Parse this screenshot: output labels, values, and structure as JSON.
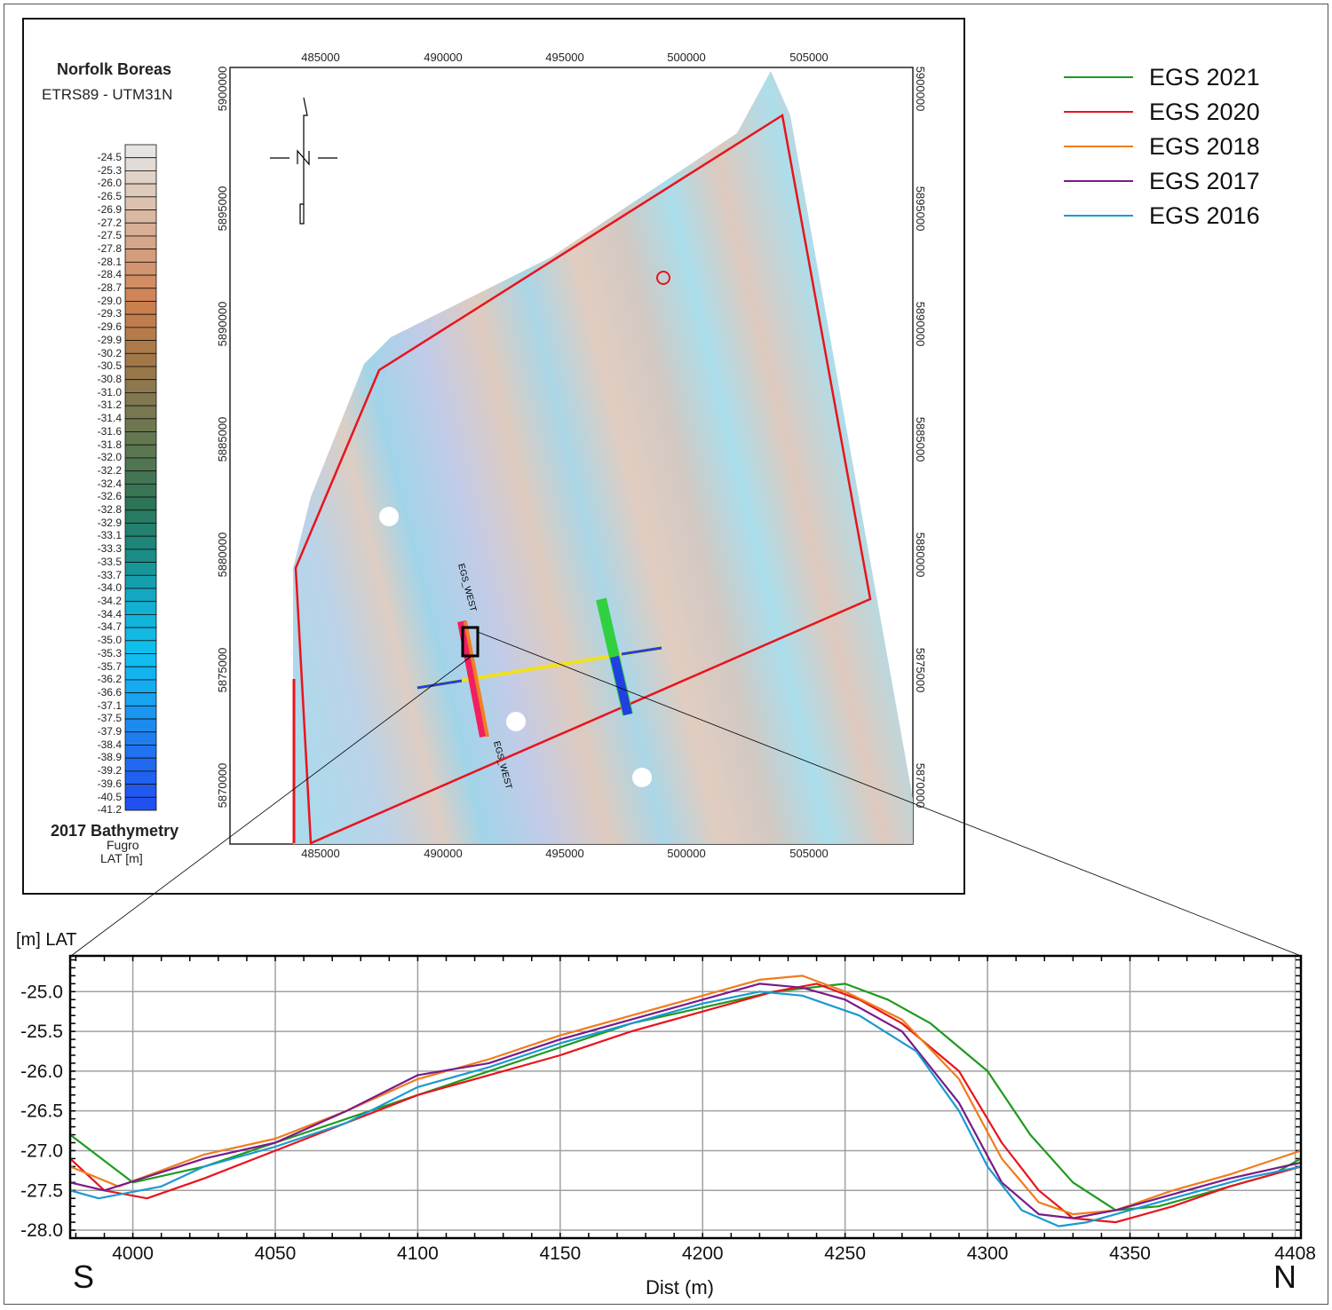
{
  "map": {
    "title": "Norfolk Boreas",
    "crs": "ETRS89 - UTM31N",
    "colorbar_title": "2017 Bathymetry",
    "colorbar_source": "Fugro",
    "colorbar_unit": "LAT [m]",
    "colorbar_labels": [
      "-24.5",
      "-25.3",
      "-26.0",
      "-26.5",
      "-26.9",
      "-27.2",
      "-27.5",
      "-27.8",
      "-28.1",
      "-28.4",
      "-28.7",
      "-29.0",
      "-29.3",
      "-29.6",
      "-29.9",
      "-30.2",
      "-30.5",
      "-30.8",
      "-31.0",
      "-31.2",
      "-31.4",
      "-31.6",
      "-31.8",
      "-32.0",
      "-32.2",
      "-32.4",
      "-32.6",
      "-32.8",
      "-32.9",
      "-33.1",
      "-33.3",
      "-33.5",
      "-33.7",
      "-34.0",
      "-34.2",
      "-34.4",
      "-34.7",
      "-35.0",
      "-35.3",
      "-35.7",
      "-36.2",
      "-36.6",
      "-37.1",
      "-37.5",
      "-37.9",
      "-38.4",
      "-38.9",
      "-39.2",
      "-39.6",
      "-40.5",
      "-41.2"
    ],
    "colorbar_stops": [
      "#e6e4e3",
      "#dcc3b0",
      "#d4a080",
      "#cf8050",
      "#a87848",
      "#807850",
      "#5a7650",
      "#2e7456",
      "#1a8a80",
      "#12aecf",
      "#10c0f0",
      "#18a0f0",
      "#2070f0",
      "#2050f0"
    ],
    "easting_labels": [
      "485000",
      "490000",
      "495000",
      "500000",
      "505000"
    ],
    "northing_labels": [
      "5900000",
      "5895000",
      "5890000",
      "5885000",
      "5880000",
      "5875000",
      "5870000"
    ],
    "line_label": "EGS_WEST",
    "boundary_color": "#e8141c"
  },
  "chart_data": {
    "type": "line",
    "title": "",
    "xlabel": "Dist (m)",
    "ylabel": "[m] LAT",
    "xlim": [
      3978,
      4410
    ],
    "ylim": [
      -28.1,
      -24.55
    ],
    "xticks": [
      4000,
      4050,
      4100,
      4150,
      4200,
      4250,
      4300,
      4350,
      4408
    ],
    "xtick_labels": [
      "4000",
      "4050",
      "4100",
      "4150",
      "4200",
      "4250",
      "4300",
      "4350",
      "4408"
    ],
    "yticks": [
      -25.0,
      -25.5,
      -26.0,
      -26.5,
      -27.0,
      -27.5,
      -28.0
    ],
    "ytick_labels": [
      "-25.0",
      "-25.5",
      "-26.0",
      "-26.5",
      "-27.0",
      "-27.5",
      "-28.0"
    ],
    "grid": true,
    "legend_placement": "top-right (outside)",
    "start_label": "S",
    "end_label": "N",
    "series": [
      {
        "name": "EGS 2021",
        "color": "#1f9a1f",
        "x": [
          3978,
          4000,
          4025,
          4050,
          4075,
          4100,
          4125,
          4150,
          4175,
          4200,
          4225,
          4250,
          4265,
          4280,
          4300,
          4315,
          4330,
          4345,
          4360,
          4380,
          4400,
          4410
        ],
        "y": [
          -26.8,
          -27.4,
          -27.2,
          -26.9,
          -26.6,
          -26.3,
          -26.0,
          -25.7,
          -25.4,
          -25.2,
          -25.0,
          -24.9,
          -25.1,
          -25.4,
          -26.0,
          -26.8,
          -27.4,
          -27.75,
          -27.7,
          -27.5,
          -27.3,
          -27.1
        ]
      },
      {
        "name": "EGS 2020",
        "color": "#e8141c",
        "x": [
          3978,
          3990,
          4005,
          4025,
          4050,
          4075,
          4100,
          4125,
          4150,
          4175,
          4200,
          4225,
          4240,
          4255,
          4270,
          4290,
          4305,
          4318,
          4330,
          4345,
          4365,
          4385,
          4410
        ],
        "y": [
          -27.1,
          -27.5,
          -27.6,
          -27.35,
          -27.0,
          -26.65,
          -26.3,
          -26.05,
          -25.8,
          -25.5,
          -25.25,
          -25.0,
          -24.9,
          -25.1,
          -25.4,
          -26.0,
          -26.9,
          -27.5,
          -27.85,
          -27.9,
          -27.7,
          -27.45,
          -27.2
        ]
      },
      {
        "name": "EGS 2018",
        "color": "#f07c1c",
        "x": [
          3978,
          3995,
          4025,
          4050,
          4075,
          4100,
          4125,
          4150,
          4175,
          4200,
          4220,
          4235,
          4250,
          4270,
          4290,
          4305,
          4318,
          4330,
          4345,
          4365,
          4385,
          4410
        ],
        "y": [
          -27.2,
          -27.45,
          -27.05,
          -26.85,
          -26.5,
          -26.1,
          -25.85,
          -25.55,
          -25.3,
          -25.05,
          -24.85,
          -24.8,
          -25.0,
          -25.35,
          -26.1,
          -27.1,
          -27.65,
          -27.8,
          -27.75,
          -27.5,
          -27.3,
          -27.0
        ]
      },
      {
        "name": "EGS 2017",
        "color": "#7a1a8a",
        "x": [
          3978,
          3990,
          4025,
          4050,
          4075,
          4100,
          4125,
          4150,
          4175,
          4200,
          4220,
          4235,
          4250,
          4270,
          4290,
          4305,
          4318,
          4330,
          4345,
          4365,
          4385,
          4410
        ],
        "y": [
          -27.4,
          -27.5,
          -27.1,
          -26.9,
          -26.5,
          -26.05,
          -25.9,
          -25.6,
          -25.35,
          -25.1,
          -24.9,
          -24.95,
          -25.1,
          -25.5,
          -26.4,
          -27.4,
          -27.8,
          -27.85,
          -27.75,
          -27.55,
          -27.35,
          -27.15
        ]
      },
      {
        "name": "EGS 2016",
        "color": "#1a9ad0",
        "x": [
          3978,
          3988,
          4010,
          4025,
          4050,
          4075,
          4100,
          4125,
          4150,
          4175,
          4200,
          4220,
          4235,
          4255,
          4275,
          4290,
          4300,
          4312,
          4325,
          4335,
          4350,
          4370,
          4390,
          4410
        ],
        "y": [
          -27.5,
          -27.6,
          -27.45,
          -27.2,
          -26.95,
          -26.65,
          -26.2,
          -25.95,
          -25.65,
          -25.4,
          -25.15,
          -25.0,
          -25.05,
          -25.3,
          -25.75,
          -26.5,
          -27.2,
          -27.75,
          -27.95,
          -27.9,
          -27.75,
          -27.55,
          -27.35,
          -27.2
        ]
      }
    ]
  }
}
